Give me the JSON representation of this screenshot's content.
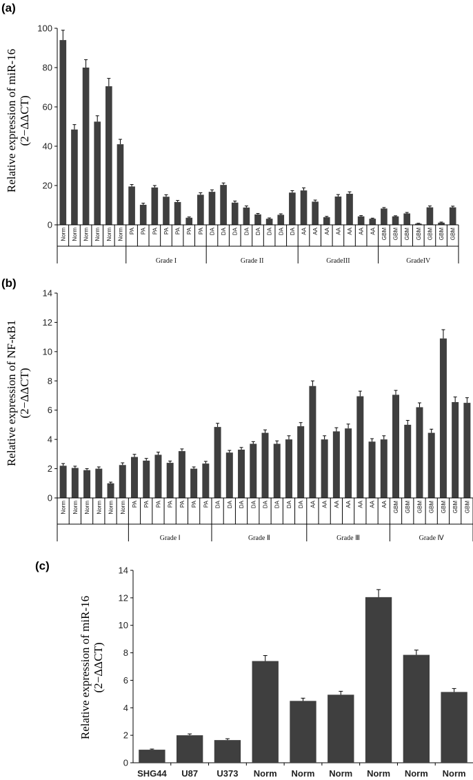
{
  "colors": {
    "bar": "#3f3f3f",
    "axis": "#000000"
  },
  "panel_labels": [
    "(a)",
    "(b)",
    "(c)"
  ],
  "chart_data": [
    {
      "type": "bar",
      "panel": "(a)",
      "ylabel_line1": "Relative expression of miR-16",
      "ylabel_line2": "(2−ΔΔCT)",
      "ylim": [
        0,
        100
      ],
      "yticks": [
        "0",
        "20",
        "40",
        "60",
        "80",
        "100"
      ],
      "categories": [
        "Norm",
        "Norm",
        "Norm",
        "Norm",
        "Norm",
        "Norm",
        "PA",
        "PA",
        "PA",
        "PA",
        "PA",
        "PA",
        "PA",
        "DA",
        "DA",
        "DA",
        "DA",
        "DA",
        "DA",
        "DA",
        "DA",
        "AA",
        "AA",
        "AA",
        "AA",
        "AA",
        "AA",
        "AA",
        "GBM",
        "GBM",
        "GBM",
        "GBM",
        "GBM",
        "GBM",
        "GBM"
      ],
      "values": [
        94,
        48.5,
        80,
        52.5,
        70.5,
        41,
        19.5,
        10.2,
        19,
        14.3,
        11.6,
        3.6,
        15.3,
        16.8,
        20.3,
        11.3,
        8.8,
        5.3,
        3.1,
        5.1,
        16.4,
        17.5,
        11.8,
        3.9,
        14.4,
        15.8,
        4.3,
        3.1,
        8.3,
        4.3,
        5.8,
        0.6,
        8.9,
        1.1,
        8.9
      ],
      "errors": [
        5,
        2.5,
        4,
        3,
        4,
        2.5,
        1,
        0.8,
        1,
        1,
        0.8,
        0.4,
        1,
        1,
        1,
        0.8,
        0.8,
        0.5,
        0.4,
        0.5,
        1,
        1.3,
        0.8,
        0.4,
        1,
        1,
        0.4,
        0.3,
        0.5,
        0.3,
        0.5,
        0.2,
        0.7,
        0.3,
        0.6
      ],
      "groups": [
        {
          "label": "",
          "count": 6
        },
        {
          "label": "Grade I",
          "count": 7
        },
        {
          "label": "Grade II",
          "count": 8
        },
        {
          "label": "GradeIII",
          "count": 7
        },
        {
          "label": "GradeIV",
          "count": 7
        }
      ]
    },
    {
      "type": "bar",
      "panel": "(b)",
      "ylabel_line1": "Relative expression of NF-κB1",
      "ylabel_line2": "(2−ΔΔCT)",
      "ylim": [
        0,
        14
      ],
      "yticks": [
        "0",
        "2",
        "4",
        "6",
        "8",
        "10",
        "12",
        "14"
      ],
      "categories": [
        "Norm",
        "Norm",
        "Norm",
        "Norm",
        "Norm",
        "Norm",
        "PA",
        "PA",
        "PA",
        "PA",
        "PA",
        "PA",
        "PA",
        "DA",
        "DA",
        "DA",
        "DA",
        "DA",
        "DA",
        "DA",
        "DA",
        "AA",
        "AA",
        "AA",
        "AA",
        "AA",
        "AA",
        "AA",
        "GBM",
        "GBM",
        "GBM",
        "GBM",
        "GBM",
        "GBM",
        "GBM"
      ],
      "values": [
        2.2,
        2.05,
        1.9,
        2.0,
        1.0,
        2.25,
        2.8,
        2.55,
        2.95,
        2.4,
        3.2,
        2.0,
        2.35,
        4.85,
        3.1,
        3.3,
        3.7,
        4.45,
        3.7,
        4.0,
        4.9,
        7.65,
        4.0,
        4.55,
        4.75,
        6.95,
        3.85,
        4.0,
        7.05,
        5.0,
        6.2,
        4.45,
        10.9,
        6.55,
        6.5
      ],
      "errors": [
        0.15,
        0.12,
        0.1,
        0.12,
        0.08,
        0.15,
        0.18,
        0.15,
        0.18,
        0.12,
        0.15,
        0.12,
        0.15,
        0.25,
        0.15,
        0.15,
        0.15,
        0.2,
        0.2,
        0.25,
        0.25,
        0.35,
        0.25,
        0.25,
        0.3,
        0.35,
        0.2,
        0.25,
        0.3,
        0.3,
        0.3,
        0.25,
        0.6,
        0.35,
        0.35
      ],
      "groups": [
        {
          "label": "",
          "count": 6
        },
        {
          "label": "Grade Ⅰ",
          "count": 7
        },
        {
          "label": "Grade Ⅱ",
          "count": 8
        },
        {
          "label": "Grade Ⅲ",
          "count": 7
        },
        {
          "label": "Grade Ⅳ",
          "count": 7
        }
      ]
    },
    {
      "type": "bar",
      "panel": "(c)",
      "ylabel_line1": "Relative expression of miR-16",
      "ylabel_line2": "(2−ΔΔCT)",
      "ylim": [
        0,
        14
      ],
      "yticks": [
        "0",
        "2",
        "4",
        "6",
        "8",
        "10",
        "12",
        "14"
      ],
      "categories": [
        "SHG44",
        "U87",
        "U373",
        "Norm",
        "Norm",
        "Norm",
        "Norm",
        "Norm",
        "Norm"
      ],
      "values": [
        0.95,
        2.0,
        1.65,
        7.4,
        4.5,
        4.95,
        12.05,
        7.85,
        5.15
      ],
      "errors": [
        0.05,
        0.1,
        0.1,
        0.4,
        0.2,
        0.25,
        0.55,
        0.35,
        0.25
      ]
    }
  ]
}
